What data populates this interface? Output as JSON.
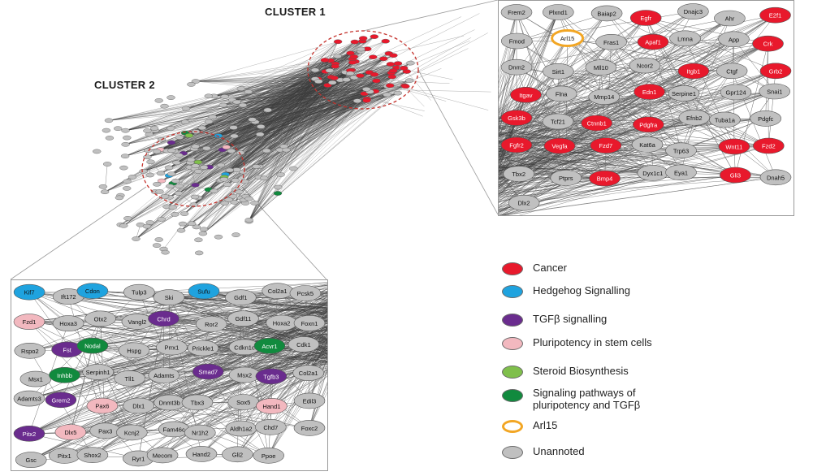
{
  "colors": {
    "cancer": "#e8192c",
    "hedgehog": "#1fa3df",
    "tgfb": "#6a2c8e",
    "pluripotency": "#f2b8bf",
    "steroid": "#7fbf4b",
    "signaling": "#118a3e",
    "arl15_ring": "#f2a624",
    "unannoted": "#c0c0c0",
    "edge": "#3d3d3d",
    "cluster_circle": "#c4312b"
  },
  "clusters": {
    "cluster1_label": "CLUSTER 1",
    "cluster2_label": "CLUSTER 2"
  },
  "legend": [
    {
      "label": "Cancer",
      "category": "cancer",
      "style": "fill"
    },
    {
      "label": "Hedgehog Signalling",
      "category": "hedgehog",
      "style": "fill"
    },
    {
      "label": "TGFβ signalling",
      "category": "tgfb",
      "style": "fill"
    },
    {
      "label": "Pluripotency in stem cells",
      "category": "pluripotency",
      "style": "fill"
    },
    {
      "label": "Steroid Biosynthesis",
      "category": "steroid",
      "style": "fill"
    },
    {
      "label": "Signaling pathways of pluripotency and TGFβ",
      "line1": "Signaling pathways of",
      "line2": "pluripotency and TGFβ",
      "category": "signaling",
      "style": "fill"
    },
    {
      "label": "Arl15",
      "category": "arl15_ring",
      "style": "ring"
    },
    {
      "label": "Unannoted",
      "category": "unannoted",
      "style": "fill"
    }
  ],
  "zoom_cluster1": {
    "nodes": [
      {
        "label": "Frem2",
        "cat": "unannoted"
      },
      {
        "label": "Plxnd1",
        "cat": "unannoted"
      },
      {
        "label": "Baiap2",
        "cat": "unannoted"
      },
      {
        "label": "Egfr",
        "cat": "cancer"
      },
      {
        "label": "Dnajc3",
        "cat": "unannoted"
      },
      {
        "label": "Ahr",
        "cat": "unannoted"
      },
      {
        "label": "E2f1",
        "cat": "cancer"
      },
      {
        "label": "Fmod",
        "cat": "unannoted"
      },
      {
        "label": "Arl15",
        "cat": "arl15"
      },
      {
        "label": "Fras1",
        "cat": "unannoted"
      },
      {
        "label": "Apaf1",
        "cat": "cancer"
      },
      {
        "label": "Lmna",
        "cat": "unannoted"
      },
      {
        "label": "App",
        "cat": "unannoted"
      },
      {
        "label": "Crk",
        "cat": "cancer"
      },
      {
        "label": "Dnm2",
        "cat": "unannoted"
      },
      {
        "label": "Sirt1",
        "cat": "unannoted"
      },
      {
        "label": "Mll10",
        "cat": "unannoted"
      },
      {
        "label": "Ncor2",
        "cat": "unannoted"
      },
      {
        "label": "Itgb1",
        "cat": "cancer"
      },
      {
        "label": "Ctgf",
        "cat": "unannoted"
      },
      {
        "label": "Grb2",
        "cat": "cancer"
      },
      {
        "label": "Itgav",
        "cat": "cancer"
      },
      {
        "label": "Flna",
        "cat": "unannoted"
      },
      {
        "label": "Mmp14",
        "cat": "unannoted"
      },
      {
        "label": "Edn1",
        "cat": "cancer"
      },
      {
        "label": "Serpine1",
        "cat": "unannoted"
      },
      {
        "label": "Gpr124",
        "cat": "unannoted"
      },
      {
        "label": "Snai1",
        "cat": "unannoted"
      },
      {
        "label": "Gsk3b",
        "cat": "cancer"
      },
      {
        "label": "Tcf21",
        "cat": "unannoted"
      },
      {
        "label": "Ctnnb1",
        "cat": "cancer"
      },
      {
        "label": "Pdgfra",
        "cat": "cancer"
      },
      {
        "label": "Efnb2",
        "cat": "unannoted"
      },
      {
        "label": "Tuba1a",
        "cat": "unannoted"
      },
      {
        "label": "Pdgfc",
        "cat": "unannoted"
      },
      {
        "label": "Fgfr2",
        "cat": "cancer"
      },
      {
        "label": "Vegfa",
        "cat": "cancer"
      },
      {
        "label": "Fzd7",
        "cat": "cancer"
      },
      {
        "label": "Kat6a",
        "cat": "unannoted"
      },
      {
        "label": "Trp63",
        "cat": "unannoted"
      },
      {
        "label": "Wnt11",
        "cat": "cancer"
      },
      {
        "label": "Fzd2",
        "cat": "cancer"
      },
      {
        "label": "Tbx2",
        "cat": "unannoted"
      },
      {
        "label": "Ptprs",
        "cat": "unannoted"
      },
      {
        "label": "Bmp4",
        "cat": "cancer"
      },
      {
        "label": "Dyx1c1",
        "cat": "unannoted"
      },
      {
        "label": "Eya1",
        "cat": "unannoted"
      },
      {
        "label": "Gli3",
        "cat": "cancer"
      },
      {
        "label": "Dnah5",
        "cat": "unannoted"
      },
      {
        "label": "Dlx2",
        "cat": "unannoted"
      }
    ]
  },
  "zoom_cluster2": {
    "nodes": [
      {
        "label": "Kif7",
        "cat": "hedgehog"
      },
      {
        "label": "Ift172",
        "cat": "unannoted"
      },
      {
        "label": "Cdon",
        "cat": "hedgehog"
      },
      {
        "label": "Tulp3",
        "cat": "unannoted"
      },
      {
        "label": "Ski",
        "cat": "unannoted"
      },
      {
        "label": "Sufu",
        "cat": "hedgehog"
      },
      {
        "label": "Gdf1",
        "cat": "unannoted"
      },
      {
        "label": "Col2a1",
        "cat": "unannoted"
      },
      {
        "label": "Pcsk5",
        "cat": "unannoted"
      },
      {
        "label": "Fzd1",
        "cat": "pluripotency"
      },
      {
        "label": "Hoxa3",
        "cat": "unannoted"
      },
      {
        "label": "Otx2",
        "cat": "unannoted"
      },
      {
        "label": "Vangl2",
        "cat": "unannoted"
      },
      {
        "label": "Chrd",
        "cat": "tgfb"
      },
      {
        "label": "Ror2",
        "cat": "unannoted"
      },
      {
        "label": "Gdf11",
        "cat": "unannoted"
      },
      {
        "label": "Hoxa2",
        "cat": "unannoted"
      },
      {
        "label": "Foxn1",
        "cat": "unannoted"
      },
      {
        "label": "Rspo2",
        "cat": "unannoted"
      },
      {
        "label": "Fst",
        "cat": "tgfb"
      },
      {
        "label": "Nodal",
        "cat": "signaling"
      },
      {
        "label": "Hspg",
        "cat": "unannoted"
      },
      {
        "label": "Prrx1",
        "cat": "unannoted"
      },
      {
        "label": "Prickle1",
        "cat": "unannoted"
      },
      {
        "label": "Cdkn1c",
        "cat": "unannoted"
      },
      {
        "label": "Acvr1",
        "cat": "signaling"
      },
      {
        "label": "Cdk1",
        "cat": "unannoted"
      },
      {
        "label": "Msx1",
        "cat": "unannoted"
      },
      {
        "label": "Inhbb",
        "cat": "signaling"
      },
      {
        "label": "Serpinh1",
        "cat": "unannoted"
      },
      {
        "label": "Tll1",
        "cat": "unannoted"
      },
      {
        "label": "Adamts",
        "cat": "unannoted"
      },
      {
        "label": "Smad7",
        "cat": "tgfb"
      },
      {
        "label": "Msx2",
        "cat": "unannoted"
      },
      {
        "label": "Tgfb3",
        "cat": "tgfb"
      },
      {
        "label": "Col2a1",
        "cat": "unannoted"
      },
      {
        "label": "Adamts3",
        "cat": "unannoted"
      },
      {
        "label": "Grem2",
        "cat": "tgfb"
      },
      {
        "label": "Pax6",
        "cat": "pluripotency"
      },
      {
        "label": "Dlx1",
        "cat": "unannoted"
      },
      {
        "label": "Dnmt3b",
        "cat": "unannoted"
      },
      {
        "label": "Tbx3",
        "cat": "unannoted"
      },
      {
        "label": "Sox5",
        "cat": "unannoted"
      },
      {
        "label": "Hand1",
        "cat": "pluripotency"
      },
      {
        "label": "Edil3",
        "cat": "unannoted"
      },
      {
        "label": "Pitx2",
        "cat": "tgfb"
      },
      {
        "label": "Dlx5",
        "cat": "pluripotency"
      },
      {
        "label": "Pax3",
        "cat": "unannoted"
      },
      {
        "label": "Kcnj2",
        "cat": "unannoted"
      },
      {
        "label": "Fam46c",
        "cat": "unannoted"
      },
      {
        "label": "Nr1h2",
        "cat": "unannoted"
      },
      {
        "label": "Aldh1a2",
        "cat": "unannoted"
      },
      {
        "label": "Chd7",
        "cat": "unannoted"
      },
      {
        "label": "Foxc2",
        "cat": "unannoted"
      },
      {
        "label": "Gsc",
        "cat": "unannoted"
      },
      {
        "label": "Pitx1",
        "cat": "unannoted"
      },
      {
        "label": "Shox2",
        "cat": "unannoted"
      },
      {
        "label": "Ryr1",
        "cat": "unannoted"
      },
      {
        "label": "Mecom",
        "cat": "unannoted"
      },
      {
        "label": "Hand2",
        "cat": "unannoted"
      },
      {
        "label": "Gli2",
        "cat": "unannoted"
      },
      {
        "label": "Ppoe",
        "cat": "unannoted"
      }
    ]
  }
}
